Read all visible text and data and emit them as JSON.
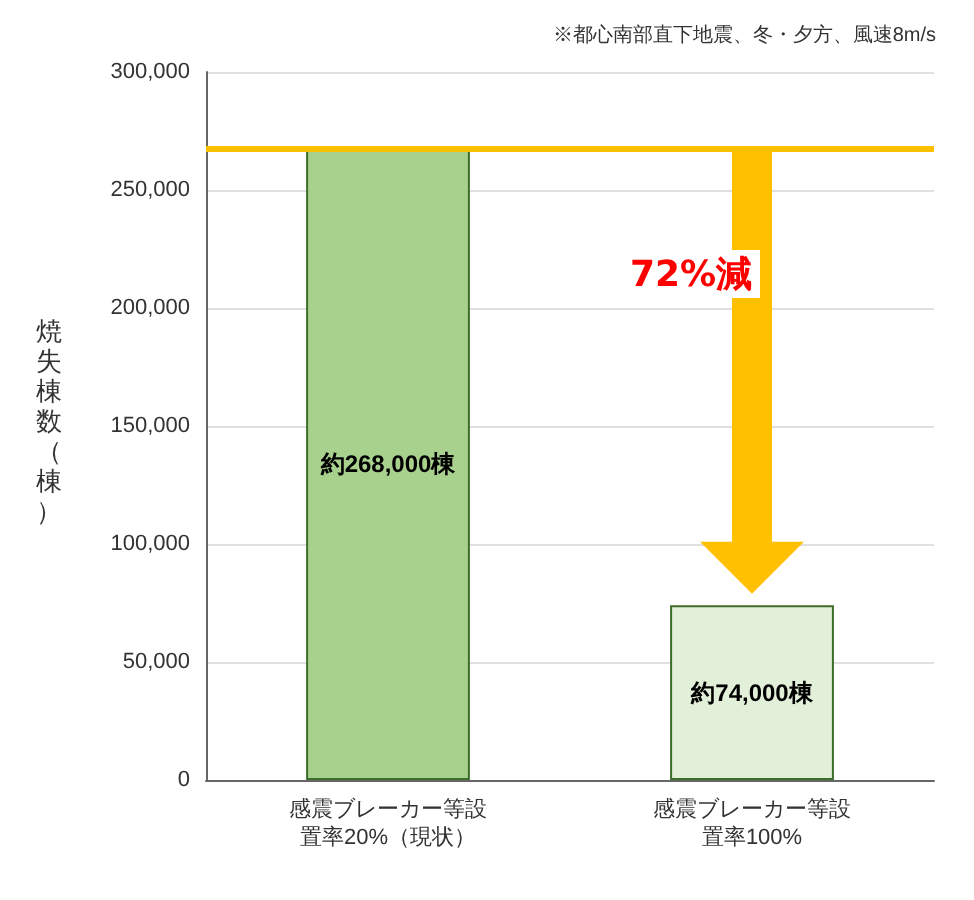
{
  "chart_data": {
    "type": "bar",
    "subtitle": "※都心南部直下地震、冬・夕方、風速8m/s",
    "ylabel": "焼失棟数（棟）",
    "categories": [
      "感震ブレーカー等設置率20%（現状）",
      "感震ブレーカー等設置率100%"
    ],
    "values": [
      268000,
      74000
    ],
    "colors": [
      "#a9d18e",
      "#e2efd9"
    ],
    "value_labels": [
      "約268,000棟",
      "約74,000棟"
    ],
    "ylim": [
      0,
      300000
    ],
    "yticks": [
      {
        "value": 0,
        "label": "0"
      },
      {
        "value": 50000,
        "label": "50,000"
      },
      {
        "value": 100000,
        "label": "100,000"
      },
      {
        "value": 150000,
        "label": "150,000"
      },
      {
        "value": 200000,
        "label": "200,000"
      },
      {
        "value": 250000,
        "label": "250,000"
      },
      {
        "value": 300000,
        "label": "300,000"
      }
    ],
    "ref_lines": [
      {
        "axis": "y",
        "value": 268000,
        "color": "#ffc000"
      }
    ],
    "annotations": [
      "72%減"
    ],
    "grid": "y"
  }
}
